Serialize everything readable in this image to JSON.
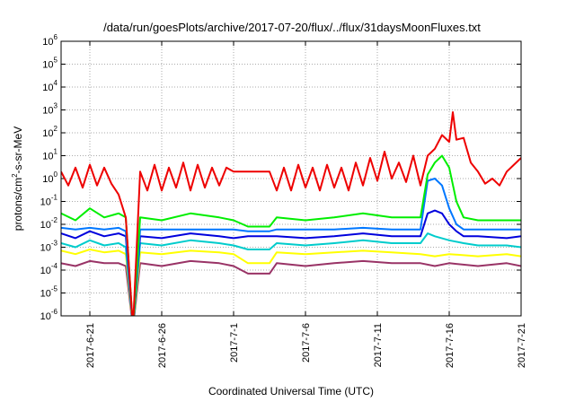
{
  "chart_data": {
    "type": "line",
    "title": "/data/run/goesPlots/archive/2017-07-20/flux/../flux/31daysMoonFluxes.txt",
    "xlabel": "Coordinated Universal Time (UTC)",
    "ylabel": "protons/cm²-s-sr-MeV",
    "ylabel_parts": {
      "pre": "protons/cm",
      "sup": "2",
      "post": "-s-sr-MeV"
    },
    "x_range": [
      "2017-06-19",
      "2017-07-21"
    ],
    "y_range": [
      1e-06,
      1000000.0
    ],
    "y_scale": "log",
    "grid": true,
    "legend": "none",
    "x_ticks": [
      {
        "date": "2017-06-21",
        "label": "2017-6-21"
      },
      {
        "date": "2017-06-26",
        "label": "2017-6-26"
      },
      {
        "date": "2017-07-01",
        "label": "2017-7-1"
      },
      {
        "date": "2017-07-06",
        "label": "2017-7-6"
      },
      {
        "date": "2017-07-11",
        "label": "2017-7-11"
      },
      {
        "date": "2017-07-16",
        "label": "2017-7-16"
      },
      {
        "date": "2017-07-21",
        "label": "2017-7-21"
      }
    ],
    "y_ticks": [
      {
        "value": 1e-06,
        "base": "10",
        "exp": "-6"
      },
      {
        "value": 1e-05,
        "base": "10",
        "exp": "-5"
      },
      {
        "value": 0.0001,
        "base": "10",
        "exp": "-4"
      },
      {
        "value": 0.001,
        "base": "10",
        "exp": "-3"
      },
      {
        "value": 0.01,
        "base": "10",
        "exp": "-2"
      },
      {
        "value": 0.1,
        "base": "10",
        "exp": "-1"
      },
      {
        "value": 1,
        "base": "10",
        "exp": "0"
      },
      {
        "value": 10,
        "base": "10",
        "exp": "1"
      },
      {
        "value": 100,
        "base": "10",
        "exp": "2"
      },
      {
        "value": 1000,
        "base": "10",
        "exp": "3"
      },
      {
        "value": 10000,
        "base": "10",
        "exp": "4"
      },
      {
        "value": 100000,
        "base": "10",
        "exp": "5"
      },
      {
        "value": 1000000,
        "base": "10",
        "exp": "6"
      }
    ],
    "series": [
      {
        "color": "#993366",
        "points": [
          [
            "2017-06-19T00:00",
            0.0002
          ],
          [
            "2017-06-20T00:00",
            0.00015
          ],
          [
            "2017-06-21T00:00",
            0.00025
          ],
          [
            "2017-06-22T00:00",
            0.0002
          ],
          [
            "2017-06-23T00:00",
            0.0002
          ],
          [
            "2017-06-23T12:00",
            0.00015
          ],
          [
            "2017-06-24T00:00",
            3e-07
          ],
          [
            "2017-06-24T12:00",
            0.0002
          ],
          [
            "2017-06-26T00:00",
            0.00015
          ],
          [
            "2017-06-28T00:00",
            0.00025
          ],
          [
            "2017-06-30T00:00",
            0.0002
          ],
          [
            "2017-07-01T00:00",
            0.00015
          ],
          [
            "2017-07-02T00:00",
            7e-05
          ],
          [
            "2017-07-03T12:00",
            7e-05
          ],
          [
            "2017-07-04T00:00",
            0.0002
          ],
          [
            "2017-07-06T00:00",
            0.00015
          ],
          [
            "2017-07-08T00:00",
            0.0002
          ],
          [
            "2017-07-10T00:00",
            0.00025
          ],
          [
            "2017-07-12T00:00",
            0.0002
          ],
          [
            "2017-07-14T00:00",
            0.0002
          ],
          [
            "2017-07-15T00:00",
            0.00015
          ],
          [
            "2017-07-16T00:00",
            0.0002
          ],
          [
            "2017-07-18T00:00",
            0.00015
          ],
          [
            "2017-07-20T00:00",
            0.0002
          ],
          [
            "2017-07-21T00:00",
            0.00015
          ]
        ]
      },
      {
        "color": "#ffff00",
        "points": [
          [
            "2017-06-19T00:00",
            0.0007
          ],
          [
            "2017-06-20T00:00",
            0.0005
          ],
          [
            "2017-06-21T00:00",
            0.0008
          ],
          [
            "2017-06-22T00:00",
            0.0006
          ],
          [
            "2017-06-23T00:00",
            0.0007
          ],
          [
            "2017-06-23T12:00",
            0.0005
          ],
          [
            "2017-06-24T00:00",
            3e-07
          ],
          [
            "2017-06-24T12:00",
            0.0006
          ],
          [
            "2017-06-26T00:00",
            0.0005
          ],
          [
            "2017-06-28T00:00",
            0.0007
          ],
          [
            "2017-06-30T00:00",
            0.0006
          ],
          [
            "2017-07-01T00:00",
            0.0005
          ],
          [
            "2017-07-02T00:00",
            0.0002
          ],
          [
            "2017-07-03T12:00",
            0.0002
          ],
          [
            "2017-07-04T00:00",
            0.0006
          ],
          [
            "2017-07-06T00:00",
            0.0005
          ],
          [
            "2017-07-08T00:00",
            0.0006
          ],
          [
            "2017-07-10T00:00",
            0.0007
          ],
          [
            "2017-07-12T00:00",
            0.0006
          ],
          [
            "2017-07-14T00:00",
            0.0005
          ],
          [
            "2017-07-15T00:00",
            0.0004
          ],
          [
            "2017-07-16T00:00",
            0.0005
          ],
          [
            "2017-07-18T00:00",
            0.0004
          ],
          [
            "2017-07-20T00:00",
            0.0005
          ],
          [
            "2017-07-21T00:00",
            0.0004
          ]
        ]
      },
      {
        "color": "#00cccc",
        "points": [
          [
            "2017-06-19T00:00",
            0.0015
          ],
          [
            "2017-06-20T00:00",
            0.001
          ],
          [
            "2017-06-21T00:00",
            0.002
          ],
          [
            "2017-06-22T00:00",
            0.0012
          ],
          [
            "2017-06-23T00:00",
            0.0015
          ],
          [
            "2017-06-23T12:00",
            0.001
          ],
          [
            "2017-06-24T00:00",
            3e-07
          ],
          [
            "2017-06-24T12:00",
            0.0015
          ],
          [
            "2017-06-26T00:00",
            0.0012
          ],
          [
            "2017-06-28T00:00",
            0.002
          ],
          [
            "2017-06-30T00:00",
            0.0015
          ],
          [
            "2017-07-01T00:00",
            0.0012
          ],
          [
            "2017-07-02T00:00",
            0.0008
          ],
          [
            "2017-07-03T12:00",
            0.0008
          ],
          [
            "2017-07-04T00:00",
            0.0015
          ],
          [
            "2017-07-06T00:00",
            0.0012
          ],
          [
            "2017-07-08T00:00",
            0.0015
          ],
          [
            "2017-07-10T00:00",
            0.002
          ],
          [
            "2017-07-12T00:00",
            0.0015
          ],
          [
            "2017-07-14T00:00",
            0.0015
          ],
          [
            "2017-07-14T12:00",
            0.004
          ],
          [
            "2017-07-15T00:00",
            0.003
          ],
          [
            "2017-07-16T00:00",
            0.002
          ],
          [
            "2017-07-17T00:00",
            0.0015
          ],
          [
            "2017-07-18T00:00",
            0.0012
          ],
          [
            "2017-07-20T00:00",
            0.0012
          ],
          [
            "2017-07-21T00:00",
            0.001
          ]
        ]
      },
      {
        "color": "#0000dd",
        "points": [
          [
            "2017-06-19T00:00",
            0.004
          ],
          [
            "2017-06-20T00:00",
            0.0025
          ],
          [
            "2017-06-21T00:00",
            0.005
          ],
          [
            "2017-06-22T00:00",
            0.003
          ],
          [
            "2017-06-23T00:00",
            0.004
          ],
          [
            "2017-06-23T12:00",
            0.003
          ],
          [
            "2017-06-24T00:00",
            3e-07
          ],
          [
            "2017-06-24T12:00",
            0.003
          ],
          [
            "2017-06-26T00:00",
            0.0025
          ],
          [
            "2017-06-28T00:00",
            0.004
          ],
          [
            "2017-06-30T00:00",
            0.003
          ],
          [
            "2017-07-01T00:00",
            0.0025
          ],
          [
            "2017-07-02T00:00",
            0.003
          ],
          [
            "2017-07-03T12:00",
            0.003
          ],
          [
            "2017-07-04T00:00",
            0.003
          ],
          [
            "2017-07-06T00:00",
            0.0025
          ],
          [
            "2017-07-08T00:00",
            0.003
          ],
          [
            "2017-07-10T00:00",
            0.004
          ],
          [
            "2017-07-12T00:00",
            0.003
          ],
          [
            "2017-07-14T00:00",
            0.003
          ],
          [
            "2017-07-14T12:00",
            0.03
          ],
          [
            "2017-07-15T00:00",
            0.04
          ],
          [
            "2017-07-15T12:00",
            0.03
          ],
          [
            "2017-07-16T00:00",
            0.01
          ],
          [
            "2017-07-16T12:00",
            0.005
          ],
          [
            "2017-07-17T00:00",
            0.003
          ],
          [
            "2017-07-18T00:00",
            0.003
          ],
          [
            "2017-07-20T00:00",
            0.0025
          ],
          [
            "2017-07-21T00:00",
            0.003
          ]
        ]
      },
      {
        "color": "#0077ff",
        "points": [
          [
            "2017-06-19T00:00",
            0.007
          ],
          [
            "2017-06-20T00:00",
            0.006
          ],
          [
            "2017-06-21T00:00",
            0.007
          ],
          [
            "2017-06-22T00:00",
            0.006
          ],
          [
            "2017-06-23T00:00",
            0.007
          ],
          [
            "2017-06-23T12:00",
            0.005
          ],
          [
            "2017-06-24T00:00",
            3e-07
          ],
          [
            "2017-06-24T12:00",
            0.006
          ],
          [
            "2017-06-26T00:00",
            0.006
          ],
          [
            "2017-06-28T00:00",
            0.006
          ],
          [
            "2017-06-30T00:00",
            0.006
          ],
          [
            "2017-07-01T00:00",
            0.006
          ],
          [
            "2017-07-02T00:00",
            0.005
          ],
          [
            "2017-07-03T12:00",
            0.005
          ],
          [
            "2017-07-04T00:00",
            0.006
          ],
          [
            "2017-07-06T00:00",
            0.006
          ],
          [
            "2017-07-08T00:00",
            0.006
          ],
          [
            "2017-07-10T00:00",
            0.007
          ],
          [
            "2017-07-12T00:00",
            0.006
          ],
          [
            "2017-07-14T00:00",
            0.006
          ],
          [
            "2017-07-14T12:00",
            0.8
          ],
          [
            "2017-07-15T00:00",
            1
          ],
          [
            "2017-07-15T12:00",
            0.5
          ],
          [
            "2017-07-16T00:00",
            0.05
          ],
          [
            "2017-07-16T12:00",
            0.01
          ],
          [
            "2017-07-17T00:00",
            0.006
          ],
          [
            "2017-07-18T00:00",
            0.006
          ],
          [
            "2017-07-20T00:00",
            0.006
          ],
          [
            "2017-07-21T00:00",
            0.006
          ]
        ]
      },
      {
        "color": "#00ee00",
        "points": [
          [
            "2017-06-19T00:00",
            0.03
          ],
          [
            "2017-06-20T00:00",
            0.015
          ],
          [
            "2017-06-21T00:00",
            0.05
          ],
          [
            "2017-06-22T00:00",
            0.02
          ],
          [
            "2017-06-23T00:00",
            0.03
          ],
          [
            "2017-06-23T12:00",
            0.02
          ],
          [
            "2017-06-24T00:00",
            3e-07
          ],
          [
            "2017-06-24T12:00",
            0.02
          ],
          [
            "2017-06-26T00:00",
            0.015
          ],
          [
            "2017-06-28T00:00",
            0.03
          ],
          [
            "2017-06-30T00:00",
            0.02
          ],
          [
            "2017-07-01T00:00",
            0.015
          ],
          [
            "2017-07-02T00:00",
            0.008
          ],
          [
            "2017-07-03T12:00",
            0.008
          ],
          [
            "2017-07-04T00:00",
            0.02
          ],
          [
            "2017-07-06T00:00",
            0.015
          ],
          [
            "2017-07-08T00:00",
            0.02
          ],
          [
            "2017-07-10T00:00",
            0.03
          ],
          [
            "2017-07-12T00:00",
            0.02
          ],
          [
            "2017-07-14T00:00",
            0.02
          ],
          [
            "2017-07-14T12:00",
            1.5
          ],
          [
            "2017-07-15T00:00",
            5
          ],
          [
            "2017-07-15T12:00",
            10
          ],
          [
            "2017-07-16T00:00",
            3
          ],
          [
            "2017-07-16T12:00",
            0.1
          ],
          [
            "2017-07-17T00:00",
            0.02
          ],
          [
            "2017-07-18T00:00",
            0.015
          ],
          [
            "2017-07-20T00:00",
            0.015
          ],
          [
            "2017-07-21T00:00",
            0.015
          ]
        ]
      },
      {
        "color": "#ee0000",
        "points": [
          [
            "2017-06-19T00:00",
            2
          ],
          [
            "2017-06-19T12:00",
            0.5
          ],
          [
            "2017-06-20T00:00",
            3
          ],
          [
            "2017-06-20T12:00",
            0.4
          ],
          [
            "2017-06-21T00:00",
            4
          ],
          [
            "2017-06-21T12:00",
            0.5
          ],
          [
            "2017-06-22T00:00",
            3
          ],
          [
            "2017-06-22T12:00",
            0.6
          ],
          [
            "2017-06-23T00:00",
            0.2
          ],
          [
            "2017-06-23T12:00",
            0.02
          ],
          [
            "2017-06-24T00:00",
            3e-07
          ],
          [
            "2017-06-24T12:00",
            2
          ],
          [
            "2017-06-25T00:00",
            0.3
          ],
          [
            "2017-06-25T12:00",
            4
          ],
          [
            "2017-06-26T00:00",
            0.3
          ],
          [
            "2017-06-26T12:00",
            3
          ],
          [
            "2017-06-27T00:00",
            0.4
          ],
          [
            "2017-06-27T12:00",
            5
          ],
          [
            "2017-06-28T00:00",
            0.3
          ],
          [
            "2017-06-28T12:00",
            4
          ],
          [
            "2017-06-29T00:00",
            0.4
          ],
          [
            "2017-06-29T12:00",
            3
          ],
          [
            "2017-06-30T00:00",
            0.5
          ],
          [
            "2017-06-30T12:00",
            3
          ],
          [
            "2017-07-01T00:00",
            2
          ],
          [
            "2017-07-03T12:00",
            2
          ],
          [
            "2017-07-04T00:00",
            0.3
          ],
          [
            "2017-07-04T12:00",
            3
          ],
          [
            "2017-07-05T00:00",
            0.3
          ],
          [
            "2017-07-05T12:00",
            4
          ],
          [
            "2017-07-06T00:00",
            0.4
          ],
          [
            "2017-07-06T12:00",
            3
          ],
          [
            "2017-07-07T00:00",
            0.3
          ],
          [
            "2017-07-07T12:00",
            4
          ],
          [
            "2017-07-08T00:00",
            0.4
          ],
          [
            "2017-07-08T12:00",
            3
          ],
          [
            "2017-07-09T00:00",
            0.3
          ],
          [
            "2017-07-09T12:00",
            5
          ],
          [
            "2017-07-10T00:00",
            0.5
          ],
          [
            "2017-07-10T12:00",
            8
          ],
          [
            "2017-07-11T00:00",
            0.8
          ],
          [
            "2017-07-11T12:00",
            15
          ],
          [
            "2017-07-12T00:00",
            1
          ],
          [
            "2017-07-12T12:00",
            5
          ],
          [
            "2017-07-13T00:00",
            0.7
          ],
          [
            "2017-07-13T12:00",
            10
          ],
          [
            "2017-07-14T00:00",
            0.5
          ],
          [
            "2017-07-14T12:00",
            10
          ],
          [
            "2017-07-15T00:00",
            20
          ],
          [
            "2017-07-15T12:00",
            80
          ],
          [
            "2017-07-16T00:00",
            40
          ],
          [
            "2017-07-16T06:00",
            800
          ],
          [
            "2017-07-16T12:00",
            50
          ],
          [
            "2017-07-17T00:00",
            60
          ],
          [
            "2017-07-17T12:00",
            5
          ],
          [
            "2017-07-18T00:00",
            2
          ],
          [
            "2017-07-18T12:00",
            0.6
          ],
          [
            "2017-07-19T00:00",
            1
          ],
          [
            "2017-07-19T12:00",
            0.5
          ],
          [
            "2017-07-20T00:00",
            2
          ],
          [
            "2017-07-20T12:00",
            4
          ],
          [
            "2017-07-21T00:00",
            8
          ]
        ]
      }
    ]
  }
}
